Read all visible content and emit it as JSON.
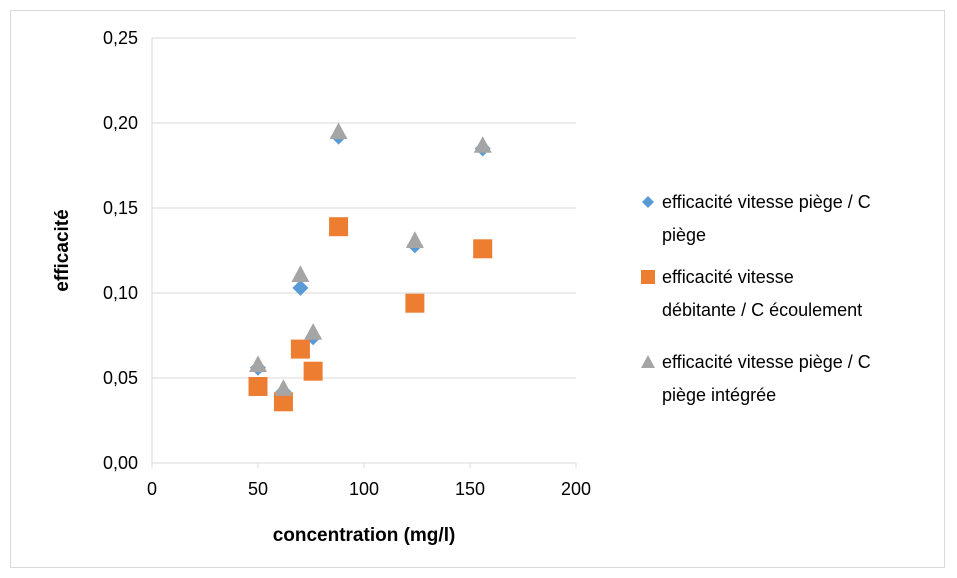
{
  "chart_data": {
    "type": "scatter",
    "xlabel": "concentration (mg/l)",
    "ylabel": "efficacité",
    "xlim": [
      0,
      200
    ],
    "ylim": [
      0,
      0.25
    ],
    "x_ticks": [
      "0",
      "50",
      "100",
      "150",
      "200"
    ],
    "y_ticks": [
      "0,00",
      "0,05",
      "0,10",
      "0,15",
      "0,20",
      "0,25"
    ],
    "grid": "horizontal",
    "legend_position": "right",
    "series": [
      {
        "name_lines": [
          "efficacité vitesse piège / C",
          "piège"
        ],
        "marker": "diamond",
        "color": "#5B9BD5",
        "points": [
          [
            50,
            0.056
          ],
          [
            62,
            0.042
          ],
          [
            70,
            0.103
          ],
          [
            76,
            0.074
          ],
          [
            88,
            0.192
          ],
          [
            124,
            0.128
          ],
          [
            156,
            0.185
          ]
        ]
      },
      {
        "name_lines": [
          "efficacité vitesse",
          "débitante / C écoulement"
        ],
        "marker": "square",
        "color": "#ED7D31",
        "points": [
          [
            50,
            0.045
          ],
          [
            62,
            0.036
          ],
          [
            70,
            0.067
          ],
          [
            76,
            0.054
          ],
          [
            88,
            0.139
          ],
          [
            124,
            0.094
          ],
          [
            156,
            0.126
          ]
        ]
      },
      {
        "name_lines": [
          "efficacité vitesse piège / C",
          "piège intégrée"
        ],
        "marker": "triangle",
        "color": "#A5A5A5",
        "points": [
          [
            50,
            0.058
          ],
          [
            62,
            0.044
          ],
          [
            70,
            0.111
          ],
          [
            76,
            0.077
          ],
          [
            88,
            0.195
          ],
          [
            124,
            0.131
          ],
          [
            156,
            0.187
          ]
        ]
      }
    ]
  }
}
